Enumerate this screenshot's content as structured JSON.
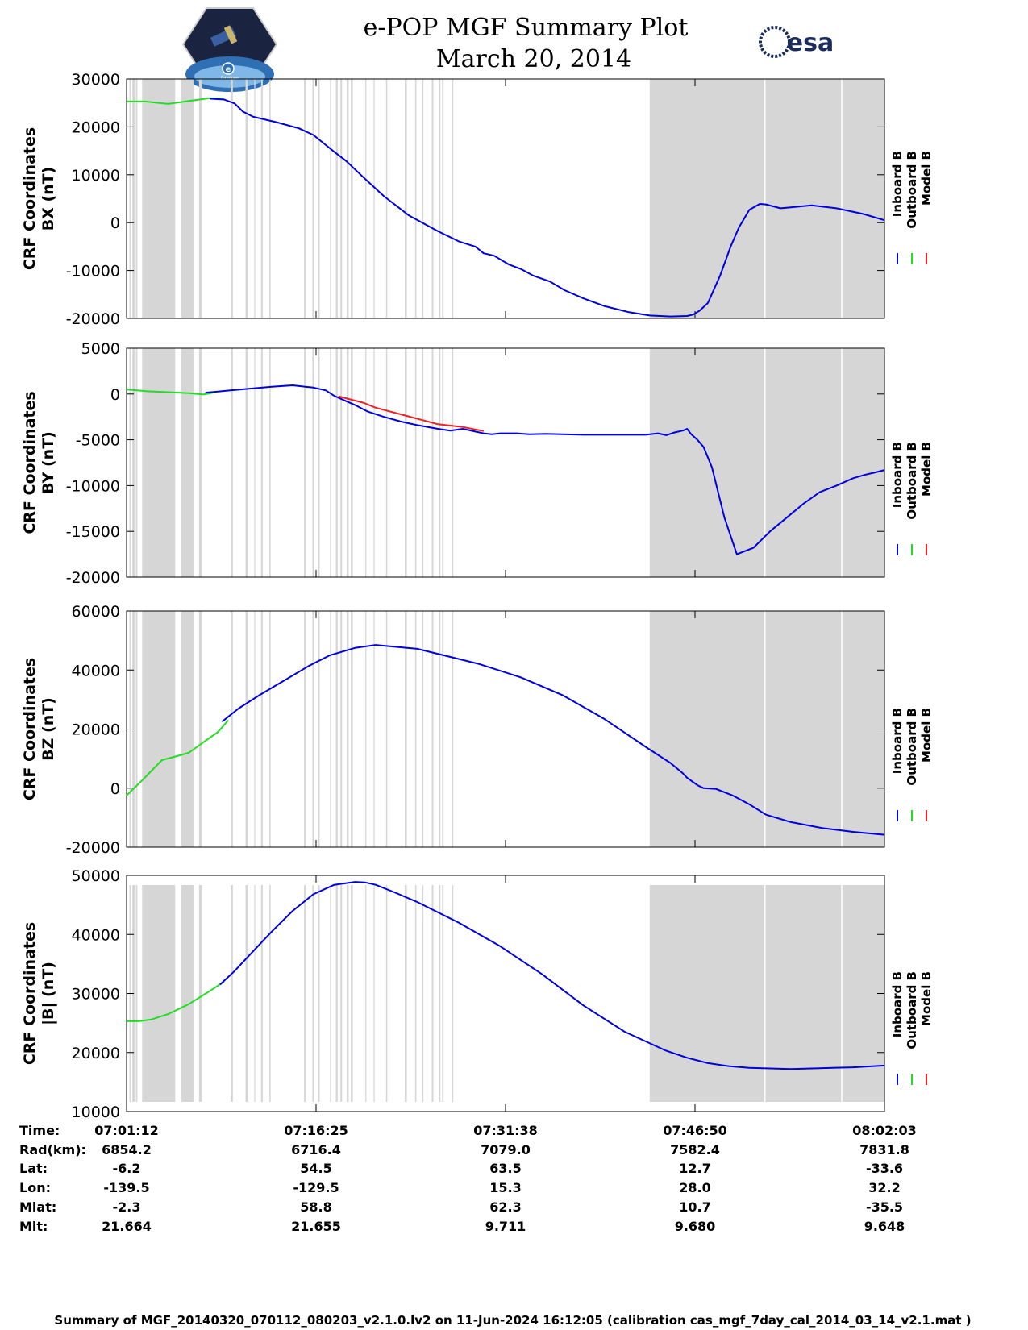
{
  "title": {
    "line1": "e-POP MGF Summary Plot",
    "line2": "March 20, 2014"
  },
  "logos": {
    "left": "Cassiope",
    "right": "esa"
  },
  "colors": {
    "inboard": "#0000dd",
    "outboard": "#22dd22",
    "model": "#ee2222",
    "gap": "#d6d6d6"
  },
  "legend": [
    "Inboard B",
    "Outboard B",
    "Model B"
  ],
  "gap_bands_sec": [
    [
      14,
      20
    ],
    [
      28,
      40
    ],
    [
      45,
      52
    ],
    [
      75,
      234
    ],
    [
      263,
      322
    ],
    [
      349,
      363
    ],
    [
      501,
      512
    ],
    [
      573,
      583
    ],
    [
      615,
      620
    ],
    [
      648,
      656
    ],
    [
      688,
      694
    ],
    [
      855,
      862
    ],
    [
      895,
      902
    ],
    [
      922,
      930
    ],
    [
      980,
      985
    ],
    [
      1008,
      1017
    ],
    [
      1030,
      1038
    ],
    [
      1060,
      1070
    ],
    [
      1080,
      1090
    ],
    [
      1150,
      1155
    ],
    [
      1190,
      1195
    ],
    [
      1250,
      1256
    ],
    [
      1340,
      1350
    ],
    [
      1390,
      1396
    ],
    [
      1425,
      1430
    ],
    [
      1470,
      1478
    ],
    [
      1505,
      1512
    ],
    [
      1520,
      1527
    ],
    [
      1568,
      1574
    ],
    [
      2520,
      3651
    ]
  ],
  "gap_dividers_sec": [
    3075,
    3445
  ],
  "chart_data": [
    {
      "type": "line",
      "ylabel_line1": "CRF Coordinates",
      "ylabel_line2": "BX (nT)",
      "ylim": [
        -20000,
        30000
      ],
      "yticks": [
        30000,
        20000,
        10000,
        0,
        -10000,
        -20000
      ],
      "xlim_sec": [
        0,
        3651
      ],
      "series": [
        {
          "name": "Outboard B",
          "x": [
            0,
            90,
            200,
            300,
            400,
            470
          ],
          "values": [
            25300,
            25300,
            24800,
            25400,
            26000,
            25800
          ]
        },
        {
          "name": "Inboard B",
          "x": [
            400,
            470,
            520,
            560,
            610,
            720,
            830,
            900,
            960,
            1000,
            1060,
            1140,
            1240,
            1360,
            1500,
            1600,
            1680,
            1720,
            1770,
            1840,
            1900,
            1960,
            2040,
            2110,
            2200,
            2300,
            2420,
            2520,
            2620,
            2700,
            2730,
            2760,
            2800,
            2860,
            2910,
            2950,
            3000,
            3050,
            3080,
            3150,
            3200,
            3300,
            3420,
            3550,
            3651
          ],
          "values": [
            25900,
            25700,
            24900,
            23200,
            22100,
            21000,
            19700,
            18300,
            16200,
            14800,
            12800,
            9500,
            5500,
            1500,
            -1800,
            -3900,
            -5000,
            -6400,
            -6900,
            -8700,
            -9700,
            -11100,
            -12300,
            -14100,
            -15800,
            -17400,
            -18700,
            -19400,
            -19600,
            -19500,
            -19200,
            -18400,
            -16800,
            -11000,
            -5000,
            -1000,
            2700,
            3900,
            3800,
            3000,
            3200,
            3600,
            3000,
            1800,
            500
          ]
        },
        {
          "name": "Model B",
          "x": [],
          "values": []
        }
      ]
    },
    {
      "type": "line",
      "ylabel_line1": "CRF Coordinates",
      "ylabel_line2": "BY (nT)",
      "ylim": [
        -20000,
        5000
      ],
      "yticks": [
        5000,
        0,
        -5000,
        -10000,
        -15000,
        -20000
      ],
      "xlim_sec": [
        0,
        3651
      ],
      "series": [
        {
          "name": "Outboard B",
          "x": [
            0,
            100,
            200,
            300,
            370,
            430
          ],
          "values": [
            500,
            300,
            200,
            100,
            -50,
            200
          ]
        },
        {
          "name": "Inboard B",
          "x": [
            380,
            430,
            500,
            600,
            700,
            800,
            900,
            960,
            1000,
            1060,
            1100,
            1160,
            1240,
            1320,
            1400,
            1500,
            1560,
            1620,
            1680,
            1720,
            1760,
            1800,
            1880,
            1940,
            2020,
            2100,
            2200,
            2300,
            2400,
            2500,
            2560,
            2600,
            2640,
            2680,
            2700,
            2720,
            2750,
            2780,
            2820,
            2880,
            2940,
            3020,
            3100,
            3180,
            3260,
            3340,
            3420,
            3500,
            3560,
            3600,
            3651
          ],
          "values": [
            150,
            250,
            400,
            600,
            800,
            950,
            700,
            400,
            -200,
            -800,
            -1200,
            -1900,
            -2500,
            -3000,
            -3400,
            -3800,
            -4000,
            -3800,
            -4100,
            -4300,
            -4400,
            -4300,
            -4300,
            -4400,
            -4350,
            -4400,
            -4450,
            -4450,
            -4450,
            -4450,
            -4300,
            -4500,
            -4200,
            -4000,
            -3800,
            -4400,
            -5000,
            -5800,
            -8000,
            -13500,
            -17500,
            -16800,
            -15000,
            -13500,
            -12000,
            -10700,
            -10000,
            -9200,
            -8800,
            -8600,
            -8300
          ]
        },
        {
          "name": "Model B",
          "x": [
            1020,
            1080,
            1140,
            1200,
            1500,
            1620,
            1720
          ],
          "values": [
            -250,
            -600,
            -950,
            -1500,
            -3300,
            -3600,
            -4050
          ]
        }
      ]
    },
    {
      "type": "line",
      "ylabel_line1": "CRF Coordinates",
      "ylabel_line2": "BZ (nT)",
      "ylim": [
        -20000,
        60000
      ],
      "yticks": [
        60000,
        40000,
        20000,
        0,
        -20000
      ],
      "xlim_sec": [
        0,
        3651
      ],
      "series": [
        {
          "name": "Outboard B",
          "x": [
            0,
            80,
            170,
            250,
            300,
            380,
            440,
            490
          ],
          "values": [
            -2500,
            3000,
            9500,
            11000,
            12000,
            16000,
            19000,
            23000
          ]
        },
        {
          "name": "Inboard B",
          "x": [
            460,
            540,
            640,
            760,
            880,
            980,
            1100,
            1200,
            1400,
            1700,
            1900,
            2100,
            2300,
            2500,
            2620,
            2680,
            2700,
            2750,
            2780,
            2840,
            2920,
            3000,
            3080,
            3200,
            3350,
            3500,
            3651
          ],
          "values": [
            22500,
            27000,
            31500,
            36500,
            41500,
            45000,
            47500,
            48500,
            47200,
            42000,
            37500,
            31500,
            23500,
            14000,
            8500,
            5000,
            3500,
            1000,
            0,
            -300,
            -2500,
            -5500,
            -9000,
            -11500,
            -13500,
            -14800,
            -15800
          ]
        },
        {
          "name": "Model B",
          "x": [],
          "values": []
        }
      ]
    },
    {
      "type": "line",
      "ylabel_line1": "CRF Coordinates",
      "ylabel_line2": "|B| (nT)",
      "ylim": [
        10000,
        50000
      ],
      "yticks": [
        50000,
        40000,
        30000,
        20000,
        10000
      ],
      "xlim_sec": [
        0,
        3651
      ],
      "series": [
        {
          "name": "Outboard B",
          "x": [
            0,
            60,
            120,
            200,
            300,
            400,
            470
          ],
          "values": [
            25300,
            25300,
            25600,
            26500,
            28200,
            30400,
            32000
          ]
        },
        {
          "name": "Inboard B",
          "x": [
            450,
            520,
            600,
            700,
            800,
            900,
            1000,
            1100,
            1150,
            1200,
            1300,
            1400,
            1600,
            1800,
            2000,
            2200,
            2400,
            2600,
            2700,
            2800,
            2900,
            3000,
            3100,
            3200,
            3300,
            3400,
            3500,
            3651
          ],
          "values": [
            31500,
            33800,
            36800,
            40500,
            44000,
            46800,
            48400,
            48900,
            48800,
            48400,
            47000,
            45500,
            42000,
            38000,
            33300,
            28000,
            23500,
            20300,
            19100,
            18200,
            17700,
            17400,
            17300,
            17200,
            17300,
            17400,
            17500,
            17800
          ]
        },
        {
          "name": "Model B",
          "x": [],
          "values": []
        }
      ]
    }
  ],
  "x_table": {
    "row_labels": [
      "Time:",
      "Rad(km):",
      "Lat:",
      "Lon:",
      "Mlat:",
      "Mlt:"
    ],
    "columns": [
      [
        "07:01:12",
        "6854.2",
        "-6.2",
        "-139.5",
        "-2.3",
        "21.664"
      ],
      [
        "07:16:25",
        "6716.4",
        "54.5",
        "-129.5",
        "58.8",
        "21.655"
      ],
      [
        "07:31:38",
        "7079.0",
        "63.5",
        "15.3",
        "62.3",
        "9.711"
      ],
      [
        "07:46:50",
        "7582.4",
        "12.7",
        "28.0",
        "10.7",
        "9.680"
      ],
      [
        "08:02:03",
        "7831.8",
        "-33.6",
        "32.2",
        "-35.5",
        "9.648"
      ]
    ]
  },
  "footer": "Summary of MGF_20140320_070112_080203_v2.1.0.lv2 on 11-Jun-2024 16:12:05 (calibration cas_mgf_7day_cal_2014_03_14_v2.1.mat )"
}
